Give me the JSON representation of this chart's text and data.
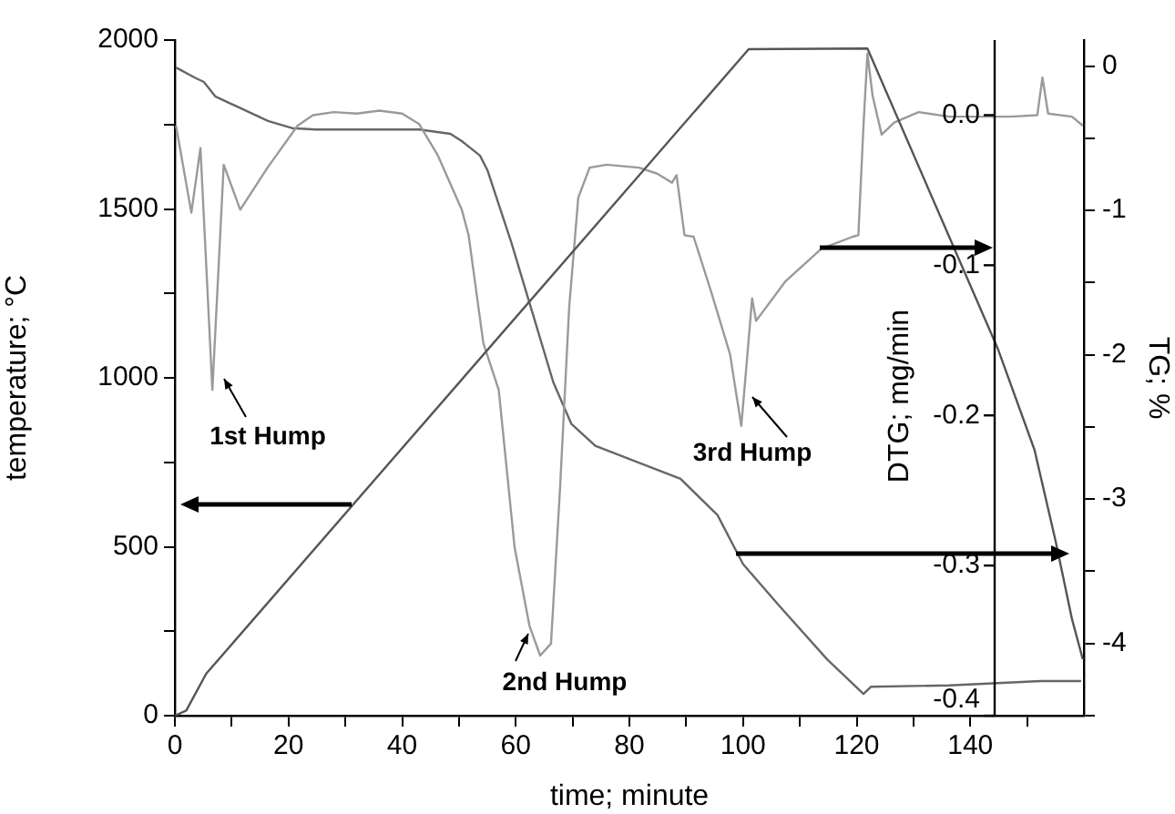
{
  "chart_data": {
    "type": "line",
    "xlabel": "time; minute",
    "ylabel": "temperature; °C",
    "y2label": "DTG; mg/min",
    "y3label": "TG; %",
    "xlim": [
      0,
      160
    ],
    "xticks": [
      0,
      {
        "value": 10,
        "label": null
      },
      20,
      {
        "value": 30,
        "label": null
      },
      40,
      {
        "value": 50,
        "label": null
      },
      60,
      {
        "value": 70,
        "label": null
      },
      80,
      {
        "value": 90,
        "label": null
      },
      100,
      {
        "value": 110,
        "label": null
      },
      120,
      {
        "value": 130,
        "label": null
      },
      140,
      {
        "value": 150,
        "label": null
      }
    ],
    "ylim": [
      0,
      2000
    ],
    "yticks": [
      0,
      {
        "value": 250,
        "label": null
      },
      500,
      {
        "value": 750,
        "label": null
      },
      1000,
      {
        "value": 1250,
        "label": null
      },
      1500,
      {
        "value": 1750,
        "label": null
      },
      2000
    ],
    "y2lim": [
      -0.4,
      0.05
    ],
    "y2ticks": [
      {
        "value": -0.4,
        "label": "-0.4"
      },
      {
        "value": -0.3,
        "label": "-0.3"
      },
      {
        "value": -0.2,
        "label": "-0.2"
      },
      {
        "value": -0.1,
        "label": "-0.1"
      },
      {
        "value": 0,
        "label": "0.0"
      }
    ],
    "y3lim": [
      -4.5,
      0.18
    ],
    "y3ticks": [
      {
        "value": -4.5,
        "label": null
      },
      -4,
      {
        "value": -3.5,
        "label": null
      },
      -3,
      {
        "value": -2.5,
        "label": null
      },
      -2,
      {
        "value": -1.5,
        "label": null
      },
      -1,
      {
        "value": -0.5,
        "label": null
      },
      0
    ],
    "grid": false,
    "legend": false,
    "annotations": [
      "1st Hump",
      "2nd Hump",
      "3rd Hump"
    ],
    "series": [
      {
        "color": "#555555",
        "x": [
          0,
          2,
          5.5,
          101,
          121.9,
          144.9,
          151.3,
          155,
          157.9,
          159.8
        ],
        "values": [
          0,
          15,
          124,
          1973,
          1975,
          1084,
          787,
          518,
          286,
          167
        ]
      },
      {
        "color": "#9a9a9a",
        "axis": "y2",
        "x": [
          0.2,
          2.9,
          4.5,
          6.6,
          8.6,
          11.5,
          16.3,
          21.6,
          24.3,
          28,
          32,
          36,
          40,
          43,
          46.3,
          50.5,
          51.7,
          54.3,
          57,
          59.8,
          62.4,
          64.3,
          66.2,
          67.8,
          69.4,
          71,
          73,
          76,
          81.7,
          84.9,
          87.5,
          88.3,
          89.7,
          91.3,
          94.5,
          97.7,
          99.7,
          100.6,
          101.6,
          102.3,
          107.4,
          113.8,
          119.3,
          120.3,
          121.2,
          121.9,
          122.8,
          124.4,
          126.6,
          130.9,
          136.3,
          147,
          151.8,
          152.7,
          153.7,
          157.9,
          159.8
        ],
        "values": [
          -0.007,
          -0.065,
          -0.022,
          -0.183,
          -0.033,
          -0.063,
          -0.035,
          -0.007,
          0.0,
          0.002,
          0.001,
          0.003,
          0.001,
          -0.006,
          -0.027,
          -0.063,
          -0.08,
          -0.152,
          -0.183,
          -0.288,
          -0.34,
          -0.36,
          -0.352,
          -0.248,
          -0.128,
          -0.055,
          -0.035,
          -0.033,
          -0.035,
          -0.039,
          -0.045,
          -0.04,
          -0.08,
          -0.081,
          -0.119,
          -0.159,
          -0.207,
          -0.167,
          -0.122,
          -0.137,
          -0.111,
          -0.089,
          -0.081,
          -0.08,
          -0.007,
          0.041,
          0.013,
          -0.013,
          -0.005,
          0.002,
          -0.001,
          -0.001,
          0.0,
          0.025,
          0.001,
          -0.001,
          -0.007
        ]
      },
      {
        "color": "#666666",
        "axis": "y3",
        "x": [
          0.2,
          3.5,
          5.1,
          7.1,
          10.9,
          16.4,
          20.6,
          24.8,
          43,
          48.5,
          50.5,
          53.7,
          55,
          59.2,
          63.4,
          66.6,
          69.8,
          74,
          89,
          95.5,
          100,
          106.4,
          114.8,
          121.2,
          122.5,
          136.3,
          152.4,
          159.5
        ],
        "values": [
          -0.01,
          -0.08,
          -0.11,
          -0.21,
          -0.28,
          -0.38,
          -0.43,
          -0.44,
          -0.44,
          -0.47,
          -0.52,
          -0.62,
          -0.72,
          -1.22,
          -1.77,
          -2.19,
          -2.48,
          -2.63,
          -2.86,
          -3.11,
          -3.45,
          -3.74,
          -4.11,
          -4.35,
          -4.3,
          -4.29,
          -4.26,
          -4.26
        ]
      }
    ]
  }
}
